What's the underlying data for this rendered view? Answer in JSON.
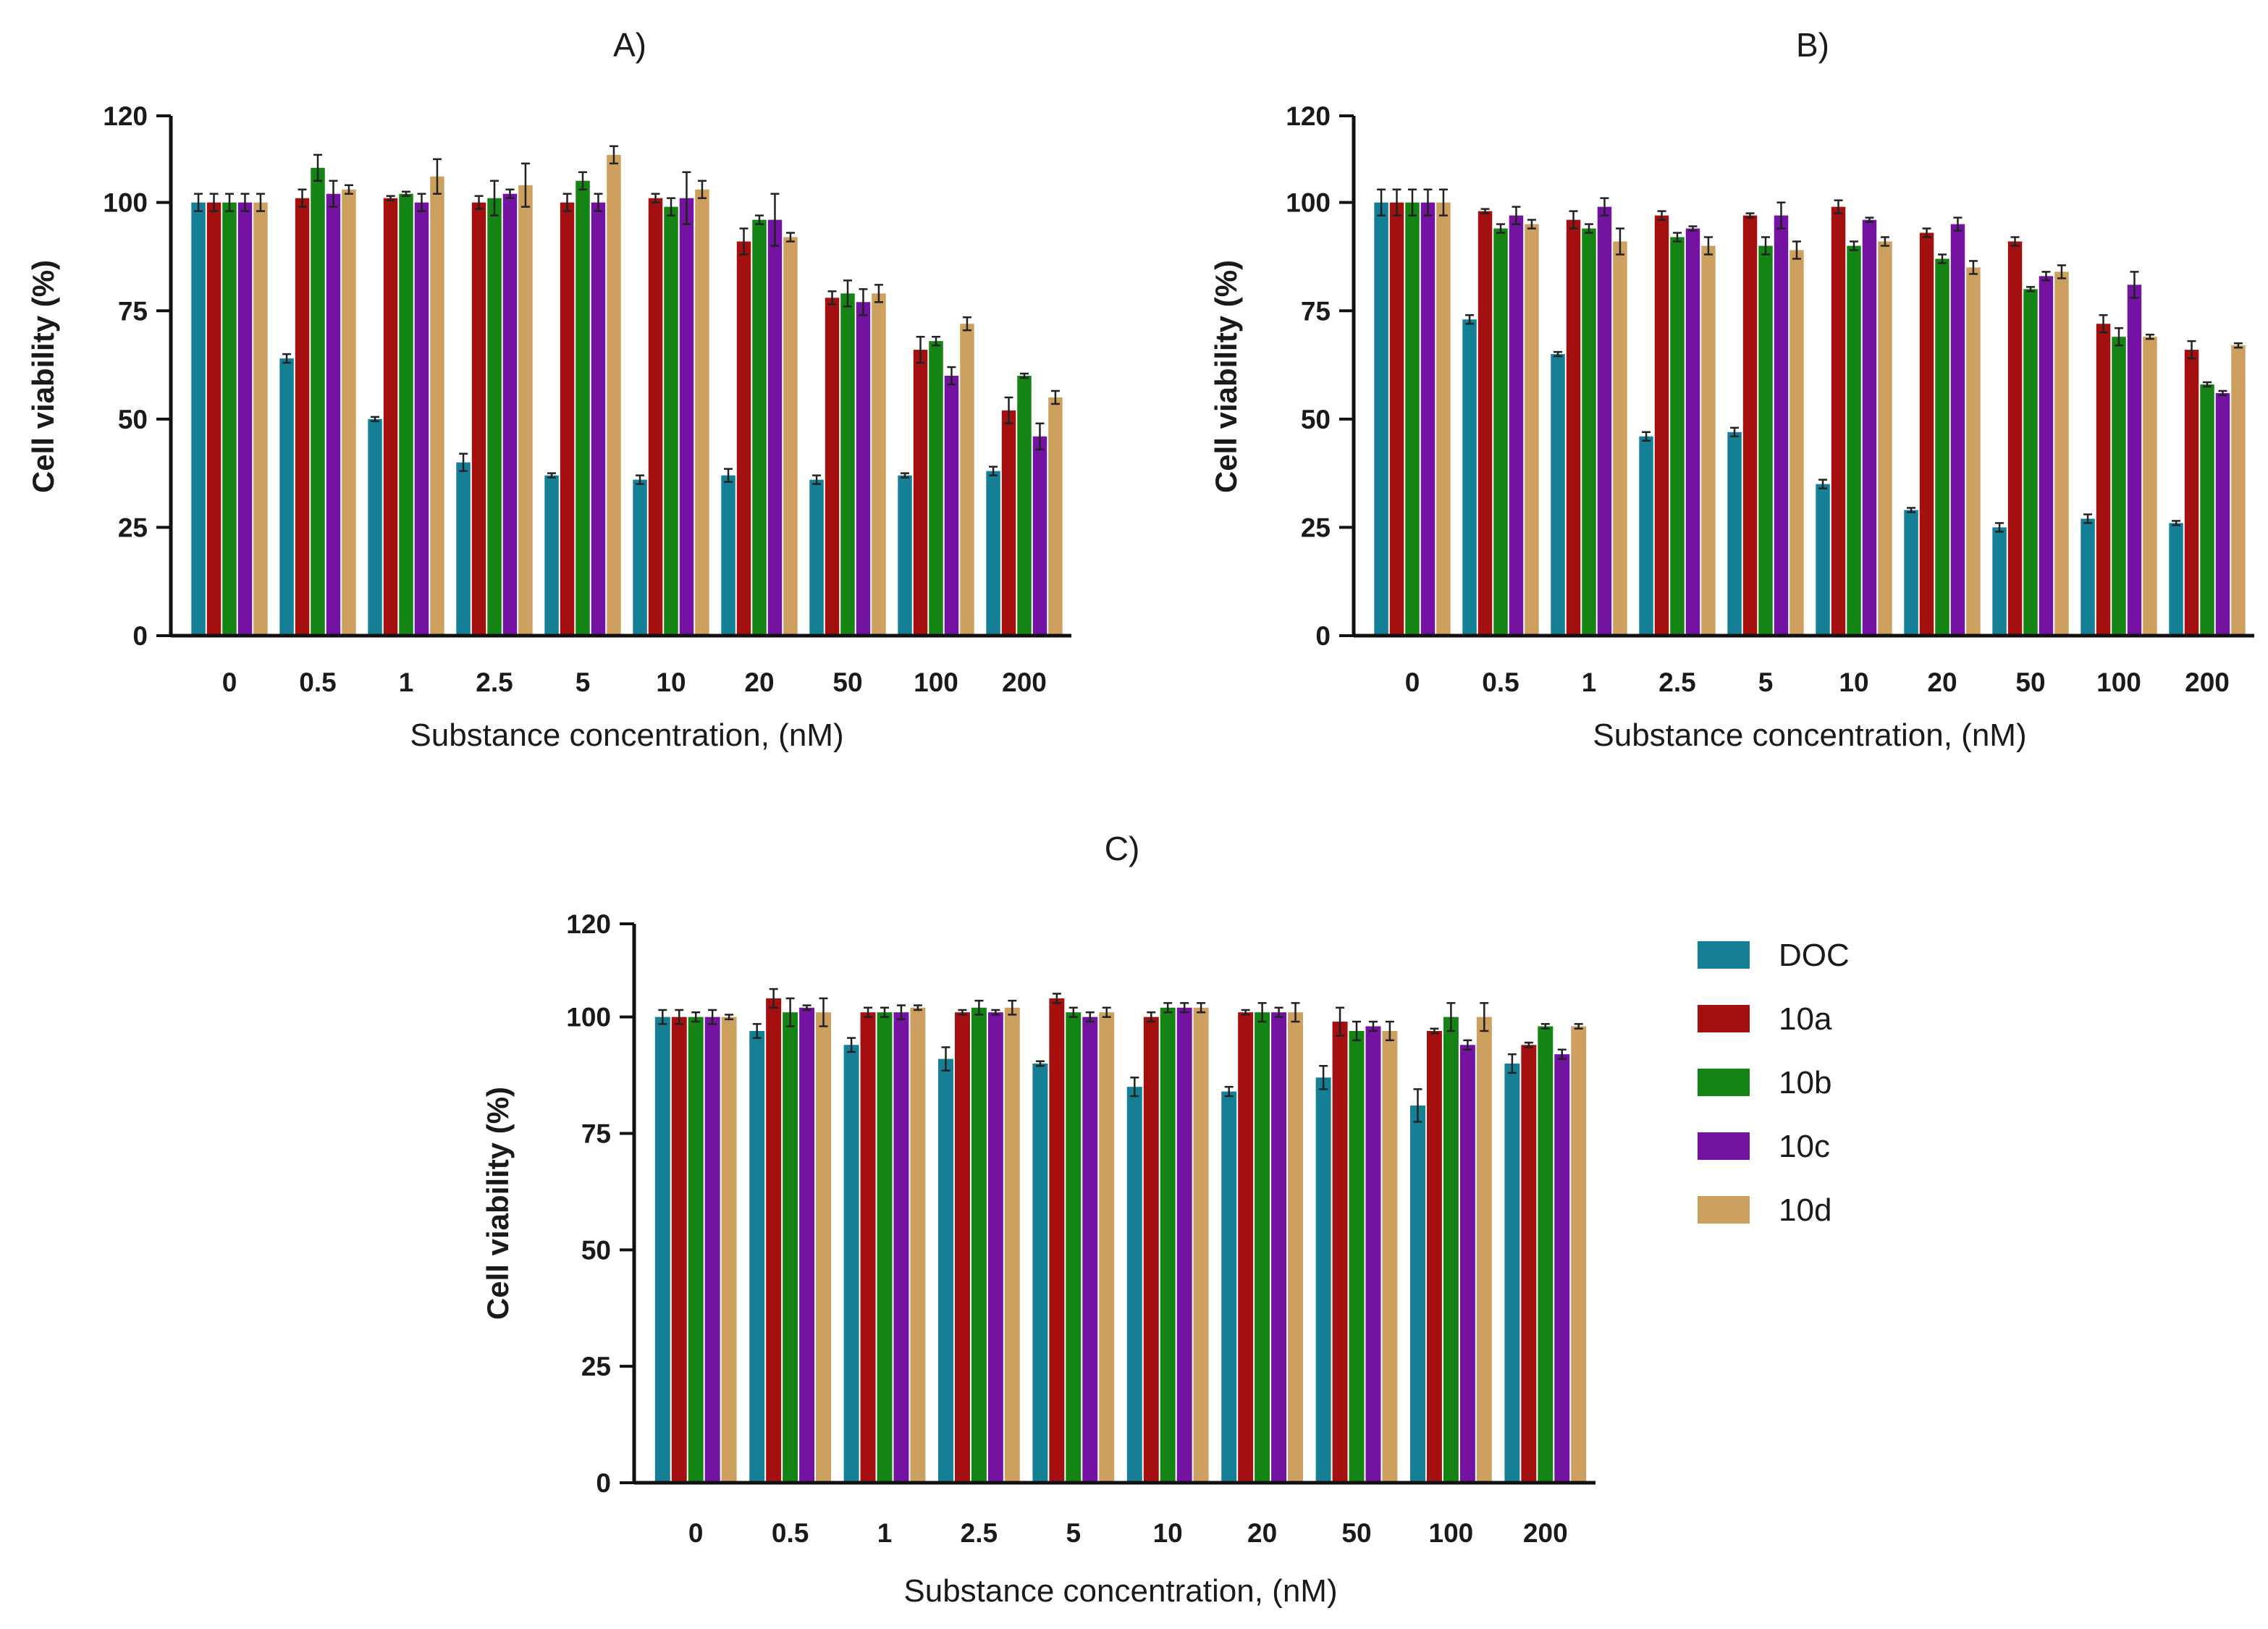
{
  "legend": [
    {
      "key": "DOC",
      "label": "DOC",
      "color": "#157F96"
    },
    {
      "key": "10a",
      "label": "10a",
      "color": "#A40F0F"
    },
    {
      "key": "10b",
      "label": "10b",
      "color": "#148414"
    },
    {
      "key": "10c",
      "label": "10c",
      "color": "#7412A2"
    },
    {
      "key": "10d",
      "label": "10d",
      "color": "#CDA05F"
    }
  ],
  "chart_data": [
    {
      "type": "bar",
      "panel_label": "A)",
      "xlabel": "Substance concentration, (nM)",
      "ylabel": "Cell viability (%)",
      "ylim": [
        0,
        120
      ],
      "yticks": [
        0,
        25,
        50,
        75,
        100,
        120
      ],
      "categories": [
        "0",
        "0.5",
        "1",
        "2.5",
        "5",
        "10",
        "20",
        "50",
        "100",
        "200"
      ],
      "series": [
        {
          "name": "DOC",
          "values": [
            100,
            64,
            50,
            40,
            37,
            36,
            37,
            36,
            37,
            38
          ],
          "errors": [
            2,
            1,
            0.5,
            2,
            0.5,
            1,
            1.5,
            1,
            0.5,
            1
          ]
        },
        {
          "name": "10a",
          "values": [
            100,
            101,
            101,
            100,
            100,
            101,
            91,
            78,
            66,
            52
          ],
          "errors": [
            2,
            2,
            0.5,
            1.5,
            2,
            1,
            3,
            1.5,
            3,
            3
          ]
        },
        {
          "name": "10b",
          "values": [
            100,
            108,
            102,
            101,
            105,
            99,
            96,
            79,
            68,
            60
          ],
          "errors": [
            2,
            3,
            0.5,
            4,
            2,
            2,
            1,
            3,
            1,
            0.5
          ]
        },
        {
          "name": "10c",
          "values": [
            100,
            102,
            100,
            102,
            100,
            101,
            96,
            77,
            60,
            46
          ],
          "errors": [
            2,
            3,
            2,
            1,
            2,
            6,
            6,
            3,
            2,
            3
          ]
        },
        {
          "name": "10d",
          "values": [
            100,
            103,
            106,
            104,
            111,
            103,
            92,
            79,
            72,
            55
          ],
          "errors": [
            2,
            1,
            4,
            5,
            2,
            2,
            1,
            2,
            1.5,
            1.5
          ]
        }
      ]
    },
    {
      "type": "bar",
      "panel_label": "B)",
      "xlabel": "Substance concentration, (nM)",
      "ylabel": "Cell viability (%)",
      "ylim": [
        0,
        120
      ],
      "yticks": [
        0,
        25,
        50,
        75,
        100,
        120
      ],
      "categories": [
        "0",
        "0.5",
        "1",
        "2.5",
        "5",
        "10",
        "20",
        "50",
        "100",
        "200"
      ],
      "series": [
        {
          "name": "DOC",
          "values": [
            100,
            73,
            65,
            46,
            47,
            35,
            29,
            25,
            27,
            26
          ],
          "errors": [
            3,
            1,
            0.5,
            1,
            1,
            1,
            0.5,
            1,
            1,
            0.5
          ]
        },
        {
          "name": "10a",
          "values": [
            100,
            98,
            96,
            97,
            97,
            99,
            93,
            91,
            72,
            66
          ],
          "errors": [
            3,
            0.5,
            2,
            1,
            0.5,
            1.5,
            1,
            1,
            2,
            2
          ]
        },
        {
          "name": "10b",
          "values": [
            100,
            94,
            94,
            92,
            90,
            90,
            87,
            80,
            69,
            58
          ],
          "errors": [
            3,
            1,
            1,
            1,
            2,
            1,
            1,
            0.5,
            2,
            0.5
          ]
        },
        {
          "name": "10c",
          "values": [
            100,
            97,
            99,
            94,
            97,
            96,
            95,
            83,
            81,
            56
          ],
          "errors": [
            3,
            2,
            2,
            0.5,
            3,
            0.5,
            1.5,
            1,
            3,
            0.5
          ]
        },
        {
          "name": "10d",
          "values": [
            100,
            95,
            91,
            90,
            89,
            91,
            85,
            84,
            69,
            67
          ],
          "errors": [
            3,
            1,
            3,
            2,
            2,
            1,
            1.5,
            1.5,
            0.5,
            0.5
          ]
        }
      ]
    },
    {
      "type": "bar",
      "panel_label": "C)",
      "xlabel": "Substance concentration, (nM)",
      "ylabel": "Cell viability (%)",
      "ylim": [
        0,
        120
      ],
      "yticks": [
        0,
        25,
        50,
        75,
        100,
        120
      ],
      "categories": [
        "0",
        "0.5",
        "1",
        "2.5",
        "5",
        "10",
        "20",
        "50",
        "100",
        "200"
      ],
      "series": [
        {
          "name": "DOC",
          "values": [
            100,
            97,
            94,
            91,
            90,
            85,
            84,
            87,
            81,
            90
          ],
          "errors": [
            1.5,
            1.5,
            1.5,
            2.5,
            0.5,
            2,
            1,
            2.5,
            3.5,
            2
          ]
        },
        {
          "name": "10a",
          "values": [
            100,
            104,
            101,
            101,
            104,
            100,
            101,
            99,
            97,
            94
          ],
          "errors": [
            1.5,
            2,
            1,
            0.5,
            1,
            1,
            0.5,
            3,
            0.5,
            0.5
          ]
        },
        {
          "name": "10b",
          "values": [
            100,
            101,
            101,
            102,
            101,
            102,
            101,
            97,
            100,
            98
          ],
          "errors": [
            1,
            3,
            1,
            1.5,
            1,
            1,
            2,
            2,
            3,
            0.5
          ]
        },
        {
          "name": "10c",
          "values": [
            100,
            102,
            101,
            101,
            100,
            102,
            101,
            98,
            94,
            92
          ],
          "errors": [
            1.5,
            0.5,
            1.5,
            0.5,
            1,
            1,
            1,
            1,
            1,
            1
          ]
        },
        {
          "name": "10d",
          "values": [
            100,
            101,
            102,
            102,
            101,
            102,
            101,
            97,
            100,
            98
          ],
          "errors": [
            0.5,
            3,
            0.5,
            1.5,
            1,
            1,
            2,
            2,
            3,
            0.5
          ]
        }
      ]
    }
  ]
}
